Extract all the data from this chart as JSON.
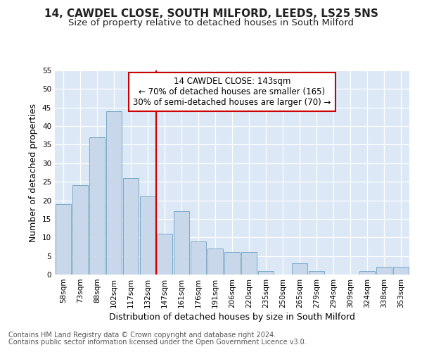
{
  "title": "14, CAWDEL CLOSE, SOUTH MILFORD, LEEDS, LS25 5NS",
  "subtitle": "Size of property relative to detached houses in South Milford",
  "xlabel": "Distribution of detached houses by size in South Milford",
  "ylabel": "Number of detached properties",
  "footnote1": "Contains HM Land Registry data © Crown copyright and database right 2024.",
  "footnote2": "Contains public sector information licensed under the Open Government Licence v3.0.",
  "annotation_line1": "14 CAWDEL CLOSE: 143sqm",
  "annotation_line2": "← 70% of detached houses are smaller (165)",
  "annotation_line3": "30% of semi-detached houses are larger (70) →",
  "bar_labels": [
    "58sqm",
    "73sqm",
    "88sqm",
    "102sqm",
    "117sqm",
    "132sqm",
    "147sqm",
    "161sqm",
    "176sqm",
    "191sqm",
    "206sqm",
    "220sqm",
    "235sqm",
    "250sqm",
    "265sqm",
    "279sqm",
    "294sqm",
    "309sqm",
    "324sqm",
    "338sqm",
    "353sqm"
  ],
  "bar_values": [
    19,
    24,
    37,
    44,
    26,
    21,
    11,
    17,
    9,
    7,
    6,
    6,
    1,
    0,
    3,
    1,
    0,
    0,
    1,
    2,
    2
  ],
  "bar_color": "#c8d8ea",
  "bar_edge_color": "#7aaac8",
  "vline_color": "#cc0000",
  "ylim": [
    0,
    55
  ],
  "yticks": [
    0,
    5,
    10,
    15,
    20,
    25,
    30,
    35,
    40,
    45,
    50,
    55
  ],
  "bg_color": "#dce8f5",
  "plot_bg": "#dce8f5",
  "fig_bg": "#ffffff",
  "grid_color": "#ffffff",
  "annotation_box_color": "#ffffff",
  "annotation_box_edge": "#cc0000",
  "title_fontsize": 11,
  "subtitle_fontsize": 9.5,
  "axis_label_fontsize": 9,
  "tick_fontsize": 7.5,
  "annotation_fontsize": 8.5,
  "footnote_fontsize": 7
}
